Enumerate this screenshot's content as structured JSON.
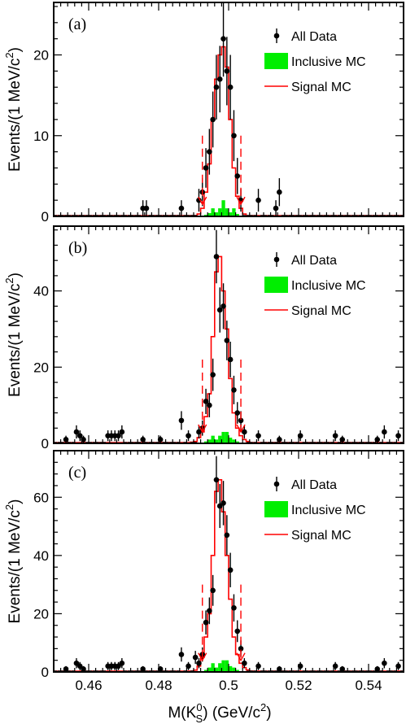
{
  "figure": {
    "x_axis_label": "M(K",
    "x_axis_label_sup": "0",
    "x_axis_label_sub": "S",
    "x_axis_label_units": ") (GeV/c",
    "x_axis_label_units_sup": "2",
    "x_axis_label_close": ")",
    "colors": {
      "data": "#000000",
      "inclusive_mc": "#00ee00",
      "signal_mc": "#ff0000",
      "arrows": "#ff0000",
      "frame": "#000000"
    }
  },
  "chart_data": [
    {
      "type": "histogram",
      "panel_label": "(a)",
      "ylabel": "Events/(1 MeV/c",
      "ylabel_sup": "2",
      "ylabel_close": ")",
      "xlim": [
        0.45,
        0.55
      ],
      "ylim": [
        0,
        26.5
      ],
      "x_ticks": [
        0.46,
        0.48,
        0.5,
        0.52,
        0.54
      ],
      "x_tick_labels": [
        "0.46",
        "0.48",
        "0.5",
        "0.52",
        "0.54"
      ],
      "y_ticks": [
        0,
        10,
        20
      ],
      "y_tick_labels": [
        "0",
        "10",
        "20"
      ],
      "show_x_tick_labels": false,
      "legend": {
        "position": "top-right",
        "entries": [
          "All Data",
          "Inclusive MC",
          "Signal MC"
        ]
      },
      "data_points": {
        "name": "All Data",
        "x": [
          0.4755,
          0.4765,
          0.4865,
          0.4915,
          0.4925,
          0.4935,
          0.4945,
          0.4955,
          0.4965,
          0.4975,
          0.4985,
          0.4995,
          0.5005,
          0.5015,
          0.5025,
          0.5035,
          0.5085,
          0.5135,
          0.5145
        ],
        "y": [
          1,
          1,
          1,
          2,
          3,
          6,
          8,
          12,
          16,
          17,
          22,
          18,
          16,
          10,
          5,
          2,
          2,
          1,
          3
        ],
        "err": [
          1,
          1,
          1,
          1.41,
          1.73,
          2.45,
          2.83,
          3.46,
          4,
          4.12,
          4.69,
          4.24,
          4,
          3.16,
          2.24,
          1.41,
          1.41,
          1,
          1.73
        ]
      },
      "signal_mc": {
        "name": "Signal MC",
        "x": [
          0.4905,
          0.4915,
          0.4925,
          0.4935,
          0.4945,
          0.4955,
          0.4965,
          0.4975,
          0.4985,
          0.4995,
          0.5005,
          0.5015,
          0.5025,
          0.5035,
          0.5045,
          0.5055
        ],
        "y": [
          0.1,
          0.3,
          1.0,
          3.0,
          6.5,
          12.0,
          17.0,
          20.0,
          21.0,
          18.5,
          12.0,
          6.0,
          2.5,
          1.0,
          0.3,
          0.1
        ]
      },
      "inclusive_mc": {
        "name": "Inclusive MC",
        "x": [
          0.4935,
          0.4945,
          0.4955,
          0.4965,
          0.4975,
          0.4985,
          0.4995,
          0.5005,
          0.5015,
          0.5025
        ],
        "y": [
          0.2,
          0.4,
          1.0,
          0.5,
          1.0,
          2.0,
          1.0,
          0.5,
          1.0,
          0.3
        ]
      },
      "cut_arrows": {
        "x": [
          0.4925,
          0.5035
        ],
        "y_top": 10,
        "y_tip": 1.5
      }
    },
    {
      "type": "histogram",
      "panel_label": "(b)",
      "ylabel": "Events/(1 MeV/c",
      "ylabel_sup": "2",
      "ylabel_close": ")",
      "xlim": [
        0.45,
        0.55
      ],
      "ylim": [
        0,
        57
      ],
      "x_ticks": [
        0.46,
        0.48,
        0.5,
        0.52,
        0.54
      ],
      "x_tick_labels": [
        "0.46",
        "0.48",
        "0.5",
        "0.52",
        "0.54"
      ],
      "y_ticks": [
        0,
        20,
        40
      ],
      "y_tick_labels": [
        "0",
        "20",
        "40"
      ],
      "show_x_tick_labels": false,
      "legend": {
        "position": "top-right",
        "entries": [
          "All Data",
          "Inclusive MC",
          "Signal MC"
        ]
      },
      "data_points": {
        "name": "All Data",
        "x": [
          0.4535,
          0.4565,
          0.4575,
          0.4585,
          0.4655,
          0.4665,
          0.4675,
          0.4685,
          0.4695,
          0.4755,
          0.4805,
          0.4865,
          0.4885,
          0.4915,
          0.4925,
          0.4935,
          0.4945,
          0.4955,
          0.4965,
          0.4975,
          0.4985,
          0.4995,
          0.5005,
          0.5015,
          0.5025,
          0.5035,
          0.5045,
          0.5085,
          0.5145,
          0.5205,
          0.5305,
          0.5325,
          0.5425,
          0.5445,
          0.5485
        ],
        "y": [
          1,
          3,
          2,
          1,
          2,
          2,
          2,
          2,
          3,
          1,
          1,
          6,
          2,
          3,
          4,
          11,
          10,
          18,
          49,
          35,
          36,
          27,
          22,
          14,
          8,
          6,
          3,
          2,
          1,
          2,
          2,
          1,
          1,
          3,
          2
        ],
        "err": [
          1,
          1.73,
          1.41,
          1,
          1.41,
          1.41,
          1.41,
          1.41,
          1.73,
          1,
          1,
          2.45,
          1.41,
          1.73,
          2,
          3.32,
          3.16,
          4.24,
          7,
          5.92,
          6,
          5.2,
          4.69,
          3.74,
          2.83,
          2.45,
          1.73,
          1.41,
          1,
          1.41,
          1.41,
          1,
          1,
          1.73,
          1.41
        ]
      },
      "signal_mc": {
        "name": "Signal MC",
        "x": [
          0.4895,
          0.4905,
          0.4915,
          0.4925,
          0.4935,
          0.4945,
          0.4955,
          0.4965,
          0.4975,
          0.4985,
          0.4995,
          0.5005,
          0.5015,
          0.5025,
          0.5035,
          0.5045,
          0.5055,
          0.5065
        ],
        "y": [
          0.3,
          0.5,
          1.5,
          3.0,
          7.0,
          13.0,
          28.0,
          45.0,
          49.0,
          40.0,
          30.0,
          17.0,
          8.0,
          4.0,
          2.0,
          1.0,
          0.5,
          0.2
        ]
      },
      "inclusive_mc": {
        "name": "Inclusive MC",
        "x": [
          0.4935,
          0.4945,
          0.4955,
          0.4965,
          0.4975,
          0.4985,
          0.4995,
          0.5005,
          0.5015,
          0.5025
        ],
        "y": [
          0.5,
          1.0,
          2.0,
          1.0,
          2.0,
          3.0,
          3.0,
          1.5,
          1.0,
          0.5
        ]
      },
      "cut_arrows": {
        "x": [
          0.4925,
          0.5035
        ],
        "y_top": 22,
        "y_tip": 3
      }
    },
    {
      "type": "histogram",
      "panel_label": "(c)",
      "ylabel": "Events/(1 MeV/c",
      "ylabel_sup": "2",
      "ylabel_close": ")",
      "xlim": [
        0.45,
        0.55
      ],
      "ylim": [
        0,
        76
      ],
      "x_ticks": [
        0.46,
        0.48,
        0.5,
        0.52,
        0.54
      ],
      "x_tick_labels": [
        "0.46",
        "0.48",
        "0.5",
        "0.52",
        "0.54"
      ],
      "y_ticks": [
        0,
        20,
        40,
        60
      ],
      "y_tick_labels": [
        "0",
        "20",
        "40",
        "60"
      ],
      "show_x_tick_labels": true,
      "legend": {
        "position": "top-right",
        "entries": [
          "All Data",
          "Inclusive MC",
          "Signal MC"
        ]
      },
      "data_points": {
        "name": "All Data",
        "x": [
          0.4535,
          0.4565,
          0.4575,
          0.4585,
          0.4655,
          0.4665,
          0.4675,
          0.4685,
          0.4695,
          0.4755,
          0.4805,
          0.4865,
          0.4885,
          0.4905,
          0.4915,
          0.4925,
          0.4935,
          0.4945,
          0.4955,
          0.4965,
          0.4975,
          0.4985,
          0.4995,
          0.5005,
          0.5015,
          0.5025,
          0.5035,
          0.5045,
          0.5085,
          0.5145,
          0.5205,
          0.5305,
          0.5325,
          0.5425,
          0.5445,
          0.5485
        ],
        "y": [
          1,
          3,
          2,
          1,
          2,
          2,
          2,
          2,
          3,
          1,
          1,
          6,
          2,
          5,
          3,
          6,
          17,
          21,
          28,
          66,
          57,
          58,
          47,
          35,
          22,
          14,
          8,
          3,
          2,
          1,
          2,
          2,
          1,
          1,
          3,
          2
        ],
        "err": [
          1,
          1.73,
          1.41,
          1,
          1.41,
          1.41,
          1.41,
          1.41,
          1.73,
          1,
          1,
          2.45,
          1.41,
          2.24,
          1.73,
          2.45,
          4.12,
          4.58,
          5.29,
          8.12,
          7.55,
          7.62,
          6.86,
          5.92,
          4.69,
          3.74,
          2.83,
          1.73,
          1.41,
          1,
          1.41,
          1.41,
          1,
          1,
          1.73,
          1.41
        ]
      },
      "signal_mc": {
        "name": "Signal MC",
        "x": [
          0.4895,
          0.4905,
          0.4915,
          0.4925,
          0.4935,
          0.4945,
          0.4955,
          0.4965,
          0.4975,
          0.4985,
          0.4995,
          0.5005,
          0.5015,
          0.5025,
          0.5035,
          0.5045,
          0.5055,
          0.5065
        ],
        "y": [
          0.3,
          0.6,
          2.0,
          5.0,
          12.0,
          20.0,
          40.0,
          62.0,
          66.0,
          55.0,
          40.0,
          25.0,
          12.0,
          6.0,
          3.0,
          1.5,
          0.7,
          0.3
        ]
      },
      "inclusive_mc": {
        "name": "Inclusive MC",
        "x": [
          0.4935,
          0.4945,
          0.4955,
          0.4965,
          0.4975,
          0.4985,
          0.4995,
          0.5005,
          0.5015,
          0.5025
        ],
        "y": [
          0.7,
          1.5,
          3.0,
          1.5,
          3.0,
          4.0,
          4.0,
          2.0,
          1.5,
          0.7
        ]
      },
      "cut_arrows": {
        "x": [
          0.4925,
          0.5035
        ],
        "y_top": 30,
        "y_tip": 4
      }
    }
  ]
}
